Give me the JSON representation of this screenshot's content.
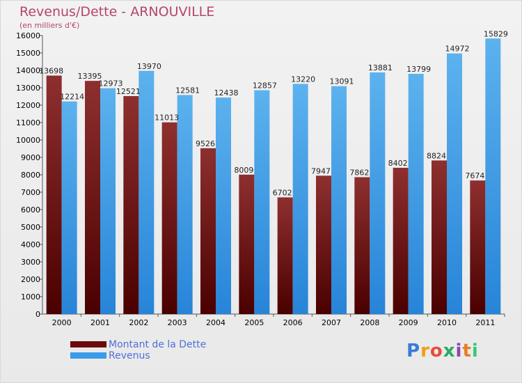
{
  "chart_data": {
    "type": "bar",
    "title": "Revenus/Dette - ARNOUVILLE",
    "subtitle": "(en milliers d'€)",
    "categories": [
      "2000",
      "2001",
      "2002",
      "2003",
      "2004",
      "2005",
      "2006",
      "2007",
      "2008",
      "2009",
      "2010",
      "2011"
    ],
    "series": [
      {
        "name": "Montant de la Dette",
        "color": "#6b0a0a",
        "values": [
          13698,
          13395,
          12521,
          11013,
          9526,
          8009,
          6702,
          7947,
          7862,
          8402,
          8824,
          7674
        ]
      },
      {
        "name": "Revenus",
        "color": "#3a9be8",
        "values": [
          12214,
          12973,
          13970,
          12581,
          12438,
          12857,
          13220,
          13091,
          13881,
          13799,
          14972,
          15829
        ]
      }
    ],
    "ylim": [
      0,
      16000
    ],
    "yticks": [
      0,
      1000,
      2000,
      3000,
      4000,
      5000,
      6000,
      7000,
      8000,
      9000,
      10000,
      11000,
      12000,
      13000,
      14000,
      15000,
      16000
    ],
    "grid": false,
    "legend_position": "bottom-left"
  },
  "logo": {
    "letters": [
      "P",
      "r",
      "o",
      "x",
      "i",
      "t",
      "i"
    ],
    "colors": [
      "#3a7bd5",
      "#f39c12",
      "#e74c3c",
      "#27ae60",
      "#8e44ad",
      "#e67e22",
      "#2ecc71"
    ]
  }
}
